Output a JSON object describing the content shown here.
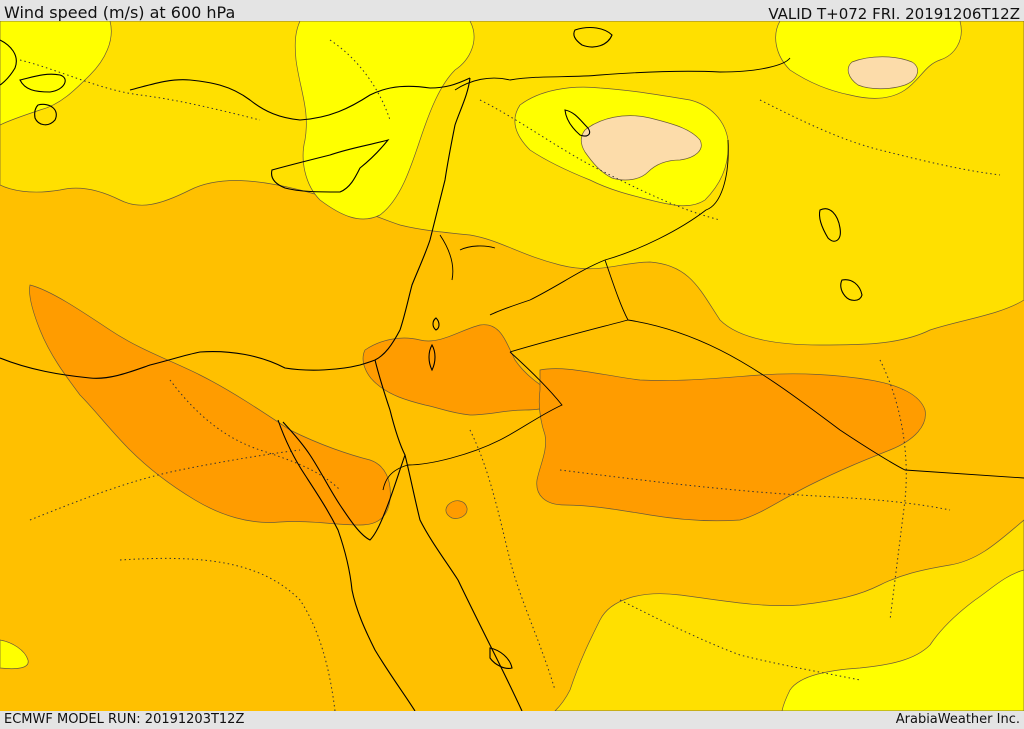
{
  "header": {
    "title": "Wind speed (m/s) at 600 hPa",
    "valid": "VALID T+072 FRI. 20191206T12Z"
  },
  "footer": {
    "model_run": "ECMWF MODEL RUN: 20191203T12Z",
    "credit": "ArabiaWeather Inc."
  },
  "map": {
    "variable": "wind speed",
    "units": "m/s",
    "level": "600 hPa",
    "shading_colors": {
      "lowest": "#fcdcaa",
      "low": "#ffff00",
      "moderate": "#ffe000",
      "high": "#ffc000",
      "highest": "#ff9c00"
    },
    "overlays": [
      "coastlines",
      "country borders",
      "administrative boundaries"
    ]
  }
}
